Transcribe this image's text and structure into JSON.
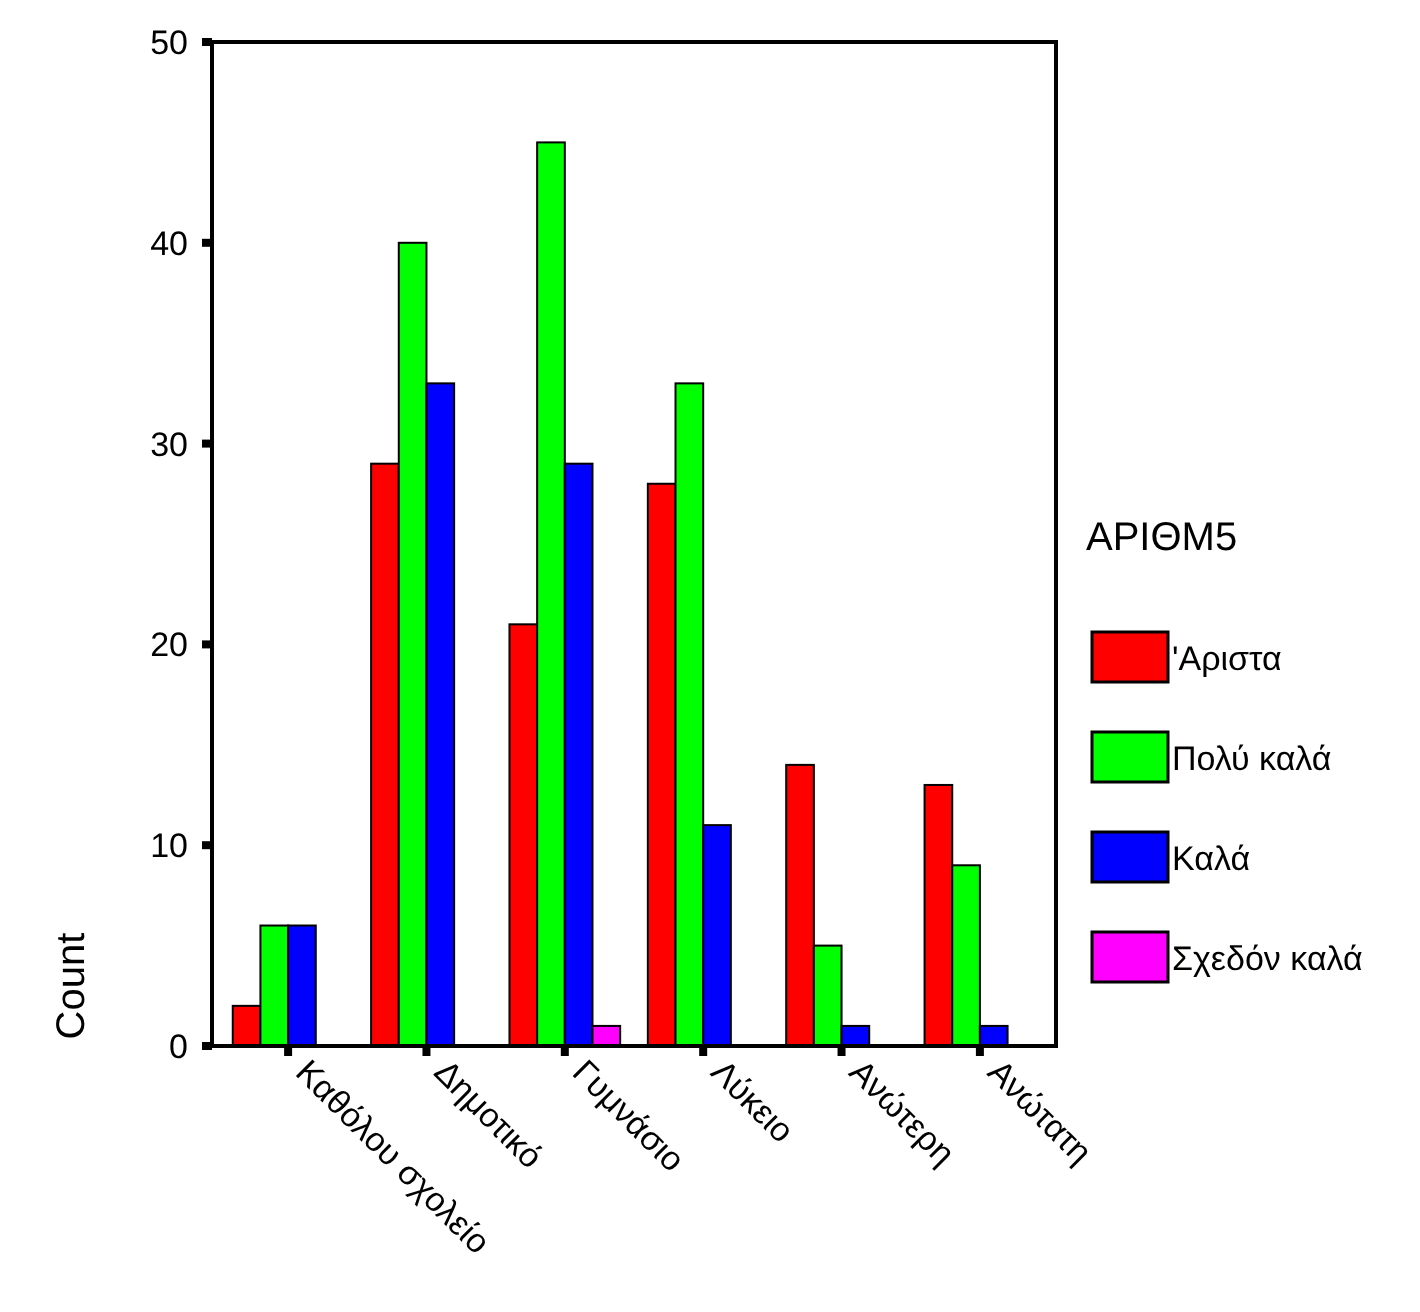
{
  "chart_data": {
    "type": "bar",
    "ylabel": "Count",
    "legend_title": "ΑΡΙΘΜ5",
    "categories": [
      "Καθόλου σχολείο",
      "Δημοτικό",
      "Γυμνάσιο",
      "Λύκειο",
      "Ανώτερη",
      "Ανώτατη"
    ],
    "series": [
      {
        "name": "'Αριστα",
        "color": "#ff0000",
        "values": [
          2,
          29,
          21,
          28,
          14,
          13
        ]
      },
      {
        "name": "Πολύ καλά",
        "color": "#00ff00",
        "values": [
          6,
          40,
          45,
          33,
          5,
          9
        ]
      },
      {
        "name": "Καλά",
        "color": "#0000ff",
        "values": [
          6,
          33,
          29,
          11,
          1,
          1
        ]
      },
      {
        "name": "Σχεδόν καλά",
        "color": "#ff00ff",
        "values": [
          null,
          null,
          1,
          null,
          null,
          null
        ]
      }
    ],
    "ylim": [
      0,
      50
    ],
    "yticks": [
      0,
      10,
      20,
      30,
      40,
      50
    ],
    "grid": false,
    "legend": "right"
  }
}
